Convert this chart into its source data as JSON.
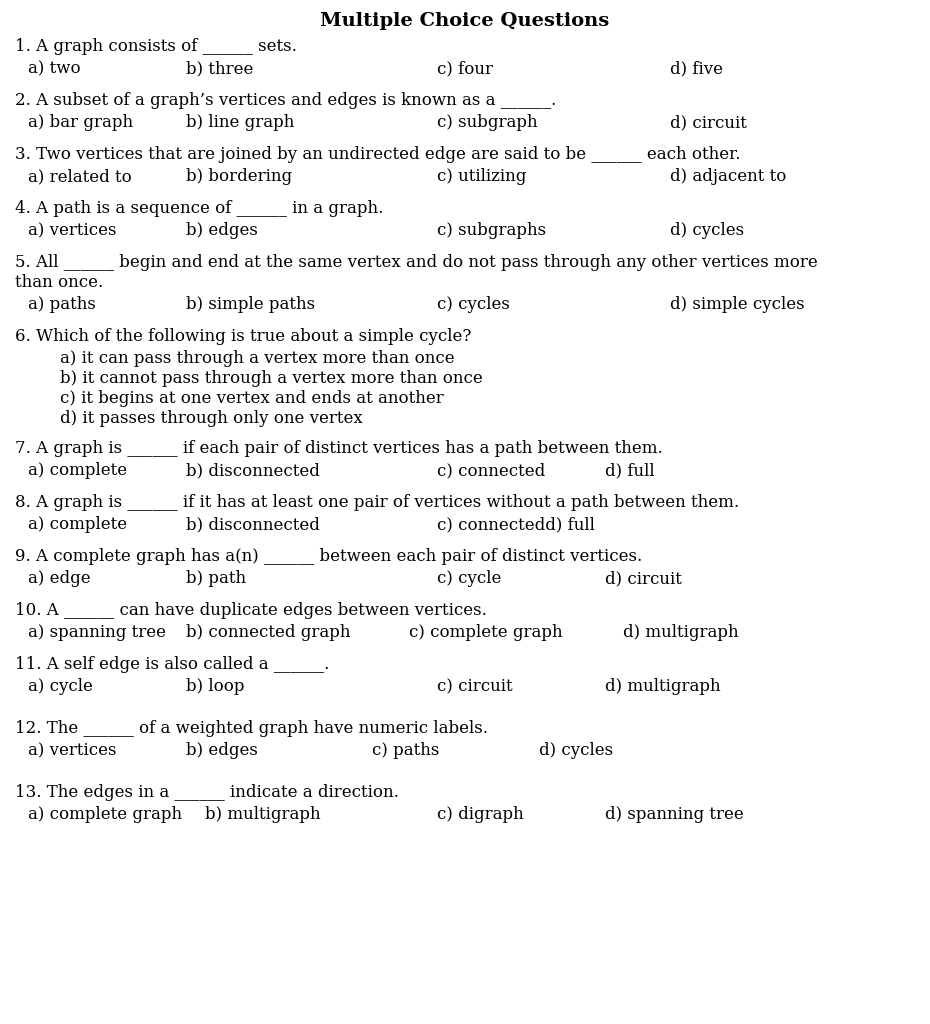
{
  "title": "Multiple Choice Questions",
  "background_color": "#ffffff",
  "text_color": "#000000",
  "title_fontsize": 14,
  "body_fontsize": 12,
  "content": [
    {
      "type": "question",
      "lines": [
        "1. A graph consists of ______ sets."
      ]
    },
    {
      "type": "options",
      "cols": [
        [
          0.03,
          "a) two"
        ],
        [
          0.2,
          "b) three"
        ],
        [
          0.47,
          "c) four"
        ],
        [
          0.72,
          "d) five"
        ]
      ]
    },
    {
      "type": "gap"
    },
    {
      "type": "question",
      "lines": [
        "2. A subset of a graph’s vertices and edges is known as a ______."
      ]
    },
    {
      "type": "options",
      "cols": [
        [
          0.03,
          "a) bar graph"
        ],
        [
          0.2,
          "b) line graph"
        ],
        [
          0.47,
          "c) subgraph"
        ],
        [
          0.72,
          "d) circuit"
        ]
      ]
    },
    {
      "type": "gap"
    },
    {
      "type": "question",
      "lines": [
        "3. Two vertices that are joined by an undirected edge are said to be ______ each other."
      ]
    },
    {
      "type": "options",
      "cols": [
        [
          0.03,
          "a) related to"
        ],
        [
          0.2,
          "b) bordering"
        ],
        [
          0.47,
          "c) utilizing"
        ],
        [
          0.72,
          "d) adjacent to"
        ]
      ]
    },
    {
      "type": "gap"
    },
    {
      "type": "question",
      "lines": [
        "4. A path is a sequence of ______ in a graph."
      ]
    },
    {
      "type": "options",
      "cols": [
        [
          0.03,
          "a) vertices"
        ],
        [
          0.2,
          "b) edges"
        ],
        [
          0.47,
          "c) subgraphs"
        ],
        [
          0.72,
          "d) cycles"
        ]
      ]
    },
    {
      "type": "gap"
    },
    {
      "type": "question",
      "lines": [
        "5. All ______ begin and end at the same vertex and do not pass through any other vertices more",
        "than once."
      ]
    },
    {
      "type": "options",
      "cols": [
        [
          0.03,
          "a) paths"
        ],
        [
          0.2,
          "b) simple paths"
        ],
        [
          0.47,
          "c) cycles"
        ],
        [
          0.72,
          "d) simple cycles"
        ]
      ]
    },
    {
      "type": "gap"
    },
    {
      "type": "question",
      "lines": [
        "6. Which of the following is true about a simple cycle?"
      ]
    },
    {
      "type": "indented",
      "text": "a) it can pass through a vertex more than once"
    },
    {
      "type": "indented",
      "text": "b) it cannot pass through a vertex more than once"
    },
    {
      "type": "indented",
      "text": "c) it begins at one vertex and ends at another"
    },
    {
      "type": "indented",
      "text": "d) it passes through only one vertex"
    },
    {
      "type": "gap"
    },
    {
      "type": "question",
      "lines": [
        "7. A graph is ______ if each pair of distinct vertices has a path between them."
      ]
    },
    {
      "type": "options",
      "cols": [
        [
          0.03,
          "a) complete"
        ],
        [
          0.2,
          "b) disconnected"
        ],
        [
          0.47,
          "c) connected"
        ],
        [
          0.65,
          "d) full"
        ]
      ]
    },
    {
      "type": "gap"
    },
    {
      "type": "question",
      "lines": [
        "8. A graph is ______ if it has at least one pair of vertices without a path between them."
      ]
    },
    {
      "type": "options",
      "cols": [
        [
          0.03,
          "a) complete"
        ],
        [
          0.2,
          "b) disconnected"
        ],
        [
          0.47,
          "c) connectedd) full"
        ]
      ]
    },
    {
      "type": "gap"
    },
    {
      "type": "question",
      "lines": [
        "9. A complete graph has a(n) ______ between each pair of distinct vertices."
      ]
    },
    {
      "type": "options",
      "cols": [
        [
          0.03,
          "a) edge"
        ],
        [
          0.2,
          "b) path"
        ],
        [
          0.47,
          "c) cycle"
        ],
        [
          0.65,
          "d) circuit"
        ]
      ]
    },
    {
      "type": "gap"
    },
    {
      "type": "question",
      "lines": [
        "10. A ______ can have duplicate edges between vertices."
      ]
    },
    {
      "type": "options",
      "cols": [
        [
          0.03,
          "a) spanning tree"
        ],
        [
          0.2,
          "b) connected graph"
        ],
        [
          0.44,
          "c) complete graph"
        ],
        [
          0.67,
          "d) multigraph"
        ]
      ]
    },
    {
      "type": "gap"
    },
    {
      "type": "question",
      "lines": [
        "11. A self edge is also called a ______."
      ]
    },
    {
      "type": "options",
      "cols": [
        [
          0.03,
          "a) cycle"
        ],
        [
          0.2,
          "b) loop"
        ],
        [
          0.47,
          "c) circuit"
        ],
        [
          0.65,
          "d) multigraph"
        ]
      ]
    },
    {
      "type": "gap"
    },
    {
      "type": "gap"
    },
    {
      "type": "question",
      "lines": [
        "12. The ______ of a weighted graph have numeric labels."
      ]
    },
    {
      "type": "options",
      "cols": [
        [
          0.03,
          "a) vertices"
        ],
        [
          0.2,
          "b) edges"
        ],
        [
          0.4,
          "c) paths"
        ],
        [
          0.58,
          "d) cycles"
        ]
      ]
    },
    {
      "type": "gap"
    },
    {
      "type": "gap"
    },
    {
      "type": "question",
      "lines": [
        "13. The edges in a ______ indicate a direction."
      ]
    },
    {
      "type": "options",
      "cols": [
        [
          0.03,
          "a) complete graph"
        ],
        [
          0.22,
          "b) multigraph"
        ],
        [
          0.47,
          "c) digraph"
        ],
        [
          0.65,
          "d) spanning tree"
        ]
      ]
    }
  ]
}
